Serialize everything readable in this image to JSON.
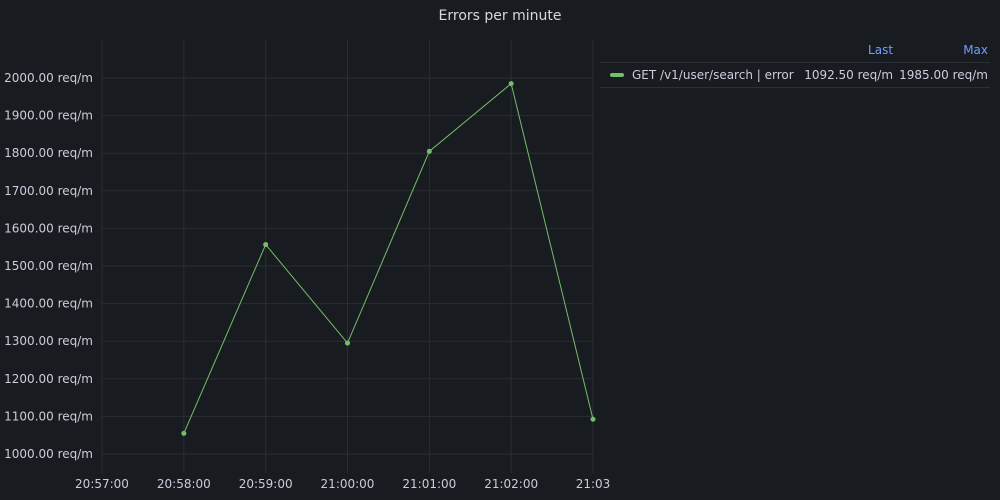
{
  "panel": {
    "title": "Errors per minute"
  },
  "legend": {
    "columns": [
      "Last",
      "Max"
    ],
    "rows": [
      {
        "name": "GET /v1/user/search | error",
        "last": "1092.50 req/m",
        "max": "1985.00 req/m"
      }
    ]
  },
  "colors": {
    "series": "#73bf69",
    "grid": "#2a2d32",
    "text": "#ccccdc",
    "legend_header": "#6e9fff"
  },
  "chart_data": {
    "type": "line",
    "title": "Errors per minute",
    "xlabel": "",
    "ylabel": "",
    "unit": "req/m",
    "x": [
      "20:58:00",
      "20:59:00",
      "21:00:00",
      "21:01:00",
      "21:02:00",
      "21:03:00"
    ],
    "x_ticks": [
      "20:57:00",
      "20:58:00",
      "20:59:00",
      "21:00:00",
      "21:01:00",
      "21:02:00",
      "21:03"
    ],
    "y_ticks": [
      "1000.00 req/m",
      "1100.00 req/m",
      "1200.00 req/m",
      "1300.00 req/m",
      "1400.00 req/m",
      "1500.00 req/m",
      "1600.00 req/m",
      "1700.00 req/m",
      "1800.00 req/m",
      "1900.00 req/m",
      "2000.00 req/m"
    ],
    "xlim": [
      "20:57:00",
      "21:03:00"
    ],
    "ylim": [
      1000,
      2000
    ],
    "grid": true,
    "legend_position": "right",
    "series": [
      {
        "name": "GET /v1/user/search | error",
        "values": [
          1055,
          1557,
          1295,
          1805,
          1985,
          1092.5
        ]
      }
    ]
  }
}
